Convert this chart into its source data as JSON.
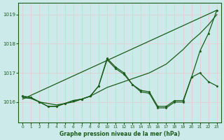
{
  "background_color": "#cceaea",
  "grid_color": "#b0d8d8",
  "line_color": "#1a5c1a",
  "marker_color": "#1a5c1a",
  "title": "Graphe pression niveau de la mer (hPa)",
  "xlim": [
    -0.5,
    23.5
  ],
  "ylim": [
    1015.3,
    1019.4
  ],
  "yticks": [
    1016,
    1017,
    1018,
    1019
  ],
  "xticks": [
    0,
    1,
    2,
    3,
    4,
    5,
    6,
    7,
    8,
    9,
    10,
    11,
    12,
    13,
    14,
    15,
    16,
    17,
    18,
    19,
    20,
    21,
    22,
    23
  ],
  "series": [
    {
      "x": [
        0,
        23
      ],
      "y": [
        1016.1,
        1019.15
      ],
      "has_markers": false,
      "lw": 0.9
    },
    {
      "x": [
        0,
        1,
        2,
        3,
        4,
        5,
        6,
        7,
        8,
        9,
        10,
        11,
        12,
        13,
        14,
        15,
        16,
        17,
        18,
        19,
        20,
        21,
        22,
        23
      ],
      "y": [
        1016.15,
        1016.12,
        1016.0,
        1015.95,
        1015.9,
        1015.95,
        1016.0,
        1016.1,
        1016.2,
        1016.35,
        1016.5,
        1016.6,
        1016.7,
        1016.8,
        1016.9,
        1017.0,
        1017.15,
        1017.3,
        1017.55,
        1017.8,
        1018.1,
        1018.35,
        1018.65,
        1019.0
      ],
      "has_markers": false,
      "lw": 0.9
    },
    {
      "x": [
        0,
        1,
        2,
        3,
        4,
        5,
        6,
        7,
        8,
        9,
        10,
        11,
        12,
        13,
        14,
        15,
        16,
        17,
        18,
        19,
        20,
        21,
        22,
        23
      ],
      "y": [
        1016.2,
        1016.15,
        1016.0,
        1015.85,
        1015.85,
        1015.95,
        1016.05,
        1016.1,
        1016.2,
        1016.55,
        1017.45,
        1017.15,
        1016.95,
        1016.6,
        1016.4,
        1016.35,
        1015.85,
        1015.85,
        1016.05,
        1016.05,
        1016.85,
        1017.75,
        1018.35,
        1019.15
      ],
      "has_markers": true,
      "lw": 0.9
    },
    {
      "x": [
        0,
        1,
        2,
        3,
        4,
        5,
        6,
        7,
        8,
        9,
        10,
        11,
        12,
        13,
        14,
        15,
        16,
        17,
        18,
        19,
        20,
        21,
        22,
        23
      ],
      "y": [
        1016.2,
        1016.15,
        1016.0,
        1015.85,
        1015.85,
        1015.95,
        1016.05,
        1016.1,
        1016.2,
        1016.55,
        1017.5,
        1017.2,
        1017.0,
        1016.6,
        1016.35,
        1016.3,
        1015.8,
        1015.8,
        1016.0,
        1016.0,
        1016.85,
        1017.0,
        1016.7,
        1016.55
      ],
      "has_markers": true,
      "lw": 0.9
    }
  ]
}
